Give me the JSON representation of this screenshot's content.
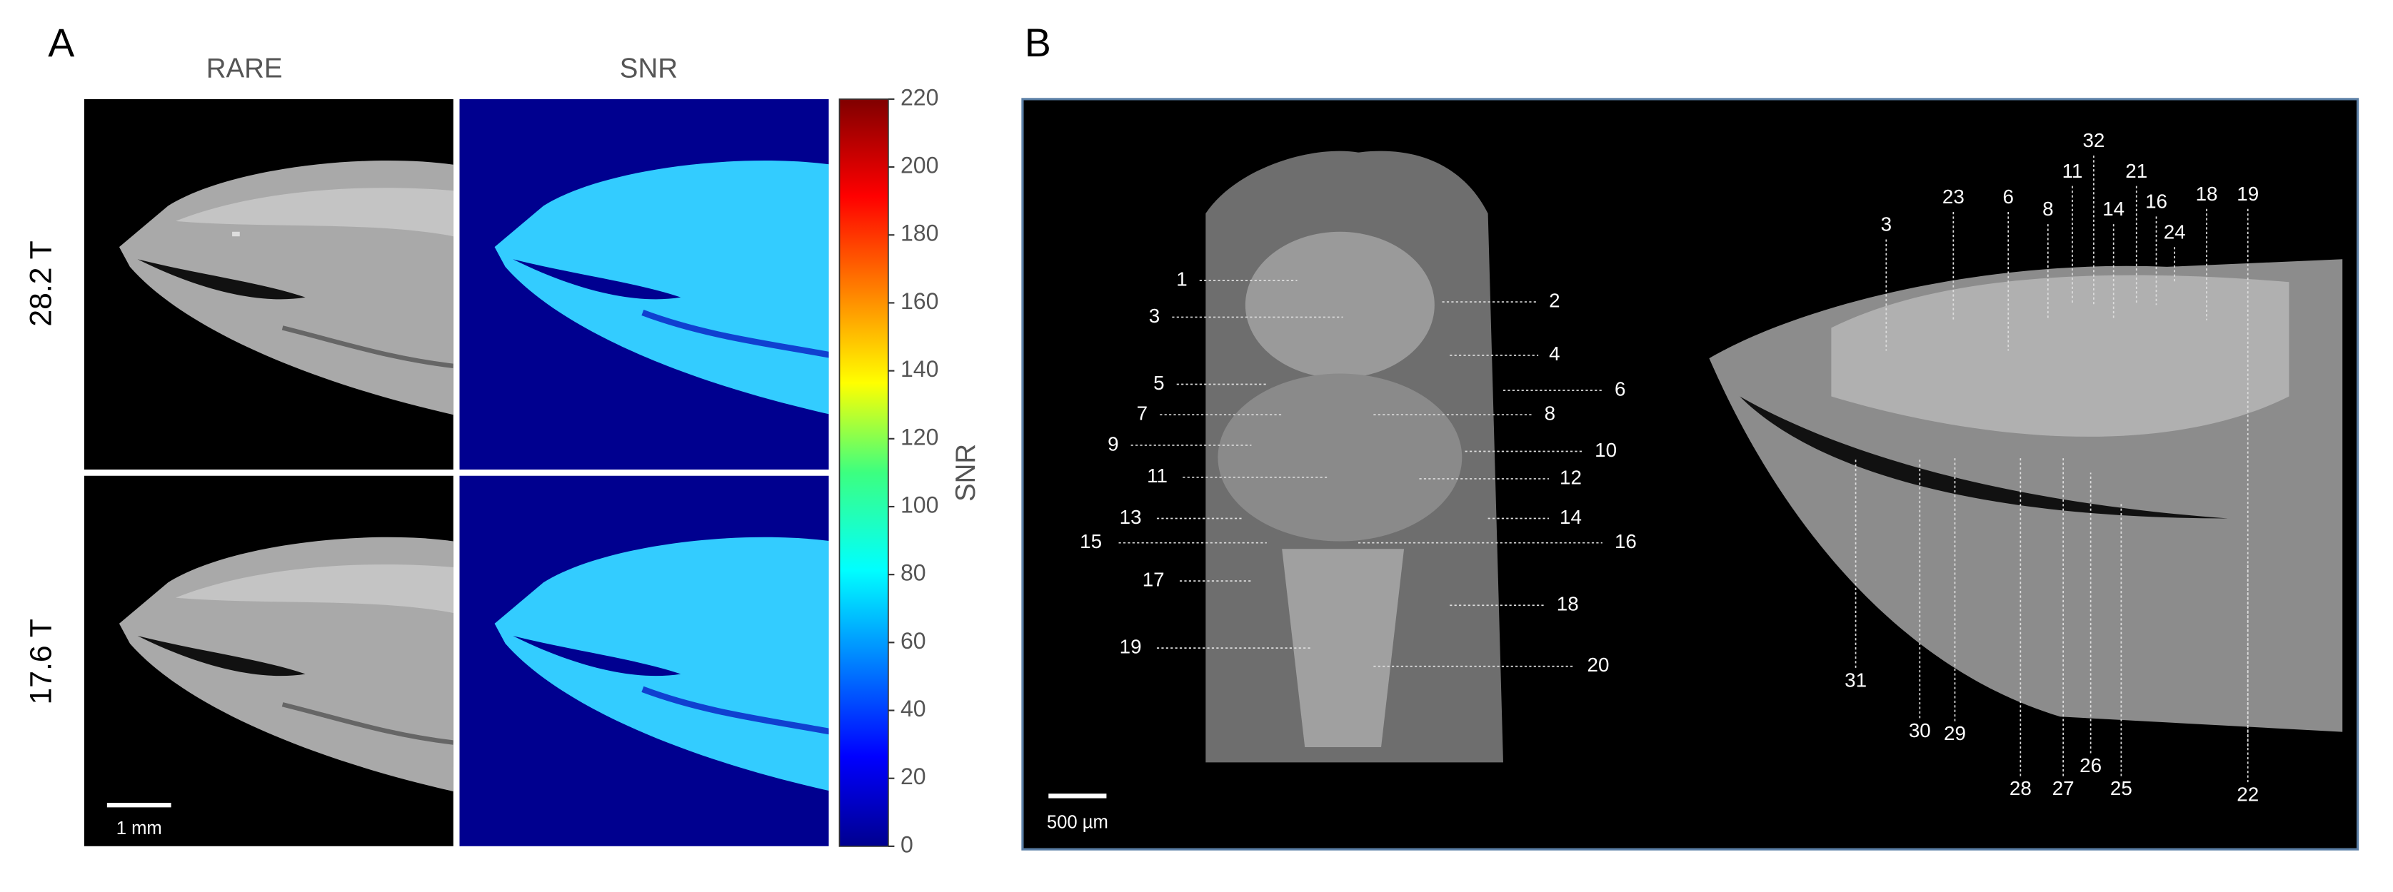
{
  "panel_a": {
    "label": "A",
    "columns": [
      "RARE",
      "SNR"
    ],
    "rows": [
      "28.2 T",
      "17.6 T"
    ],
    "scale_bar": "1 mm",
    "colorbar": {
      "label": "SNR",
      "range": [
        0,
        220
      ],
      "ticks": [
        0,
        20,
        40,
        60,
        80,
        100,
        120,
        140,
        160,
        180,
        200,
        220
      ]
    }
  },
  "panel_b": {
    "label": "B",
    "scale_bar": "500 µm",
    "coronal_labels": [
      "1",
      "2",
      "3",
      "4",
      "5",
      "6",
      "7",
      "8",
      "9",
      "10",
      "11",
      "12",
      "13",
      "14",
      "15",
      "16",
      "17",
      "18",
      "19",
      "20"
    ],
    "sagittal_labels": [
      "3",
      "23",
      "6",
      "8",
      "32",
      "11",
      "21",
      "14",
      "16",
      "24",
      "18",
      "19",
      "31",
      "30",
      "29",
      "28",
      "27",
      "26",
      "25",
      "22"
    ]
  }
}
